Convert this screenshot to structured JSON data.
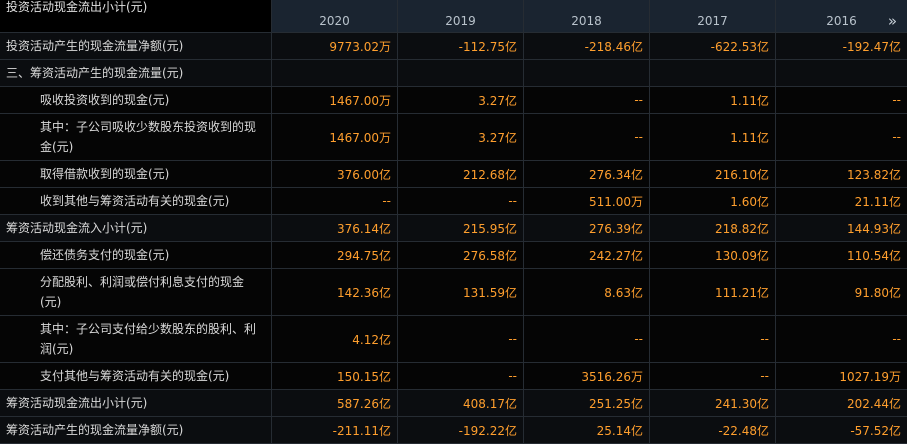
{
  "table": {
    "header": {
      "label": "投资活动现金流出小计(元)",
      "years": [
        "2020",
        "2019",
        "2018",
        "2017",
        "2016"
      ]
    },
    "rows": [
      {
        "label": "投资活动产生的现金流量净额(元)",
        "level": "top",
        "values": [
          "9773.02万",
          "-112.75亿",
          "-218.46亿",
          "-622.53亿",
          "-192.47亿"
        ]
      },
      {
        "label": "三、筹资活动产生的现金流量(元)",
        "level": "top"
      },
      {
        "label": "吸收投资收到的现金(元)",
        "level": "sub",
        "values": [
          "1467.00万",
          "3.27亿",
          "--",
          "1.11亿",
          "--"
        ]
      },
      {
        "label": "其中：子公司吸收少数股东投资收到的现金(元)",
        "level": "sub",
        "values": [
          "1467.00万",
          "3.27亿",
          "--",
          "1.11亿",
          "--"
        ]
      },
      {
        "label": "取得借款收到的现金(元)",
        "level": "sub",
        "values": [
          "376.00亿",
          "212.68亿",
          "276.34亿",
          "216.10亿",
          "123.82亿"
        ]
      },
      {
        "label": "收到其他与筹资活动有关的现金(元)",
        "level": "sub",
        "values": [
          "--",
          "--",
          "511.00万",
          "1.60亿",
          "21.11亿"
        ]
      },
      {
        "label": "筹资活动现金流入小计(元)",
        "level": "top",
        "values": [
          "376.14亿",
          "215.95亿",
          "276.39亿",
          "218.82亿",
          "144.93亿"
        ]
      },
      {
        "label": "偿还债务支付的现金(元)",
        "level": "sub",
        "values": [
          "294.75亿",
          "276.58亿",
          "242.27亿",
          "130.09亿",
          "110.54亿"
        ]
      },
      {
        "label": "分配股利、利润或偿付利息支付的现金(元)",
        "level": "sub",
        "values": [
          "142.36亿",
          "131.59亿",
          "8.63亿",
          "111.21亿",
          "91.80亿"
        ]
      },
      {
        "label": "其中：子公司支付给少数股东的股利、利润(元)",
        "level": "sub",
        "values": [
          "4.12亿",
          "--",
          "--",
          "--",
          "--"
        ]
      },
      {
        "label": "支付其他与筹资活动有关的现金(元)",
        "level": "sub",
        "values": [
          "150.15亿",
          "--",
          "3516.26万",
          "--",
          "1027.19万"
        ]
      },
      {
        "label": "筹资活动现金流出小计(元)",
        "level": "top",
        "values": [
          "587.26亿",
          "408.17亿",
          "251.25亿",
          "241.30亿",
          "202.44亿"
        ]
      },
      {
        "label": "筹资活动产生的现金流量净额(元)",
        "level": "top",
        "values": [
          "-211.11亿",
          "-192.22亿",
          "25.14亿",
          "-22.48亿",
          "-57.52亿"
        ]
      }
    ]
  }
}
